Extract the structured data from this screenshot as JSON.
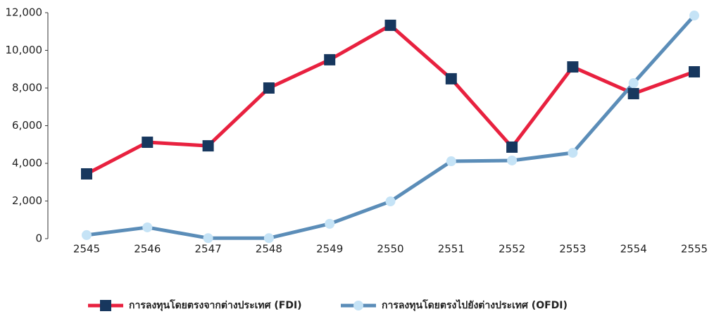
{
  "chart_data": {
    "type": "line",
    "categories": [
      "2545",
      "2546",
      "2547",
      "2548",
      "2549",
      "2550",
      "2551",
      "2552",
      "2553",
      "2554",
      "2555"
    ],
    "series": [
      {
        "name": "การลงทุนโดยตรงจากต่างประเทศ (FDI)",
        "color": "#e8213f",
        "marker_color": "#17375e",
        "marker": "square",
        "values": [
          3440,
          5120,
          4930,
          8000,
          9500,
          11330,
          8490,
          4860,
          9120,
          7700,
          8860
        ]
      },
      {
        "name": "การลงทุนโดยตรงไปยังต่างประเทศ (OFDI)",
        "color": "#5b8db8",
        "marker_color": "#c5e3f6",
        "marker": "circle",
        "values": [
          190,
          600,
          30,
          30,
          790,
          1980,
          4110,
          4150,
          4560,
          8260,
          11850
        ]
      }
    ],
    "ylim": [
      0,
      12000
    ],
    "yticks": [
      0,
      {
        "value": 2000,
        "label": "2,000"
      },
      {
        "value": 4000,
        "label": "4,000"
      },
      {
        "value": 6000,
        "label": "6,000"
      },
      {
        "value": 8000,
        "label": "8,000"
      },
      {
        "value": 10000,
        "label": "10,000"
      },
      {
        "value": 12000,
        "label": "12,000"
      }
    ],
    "legend": "bottom"
  }
}
